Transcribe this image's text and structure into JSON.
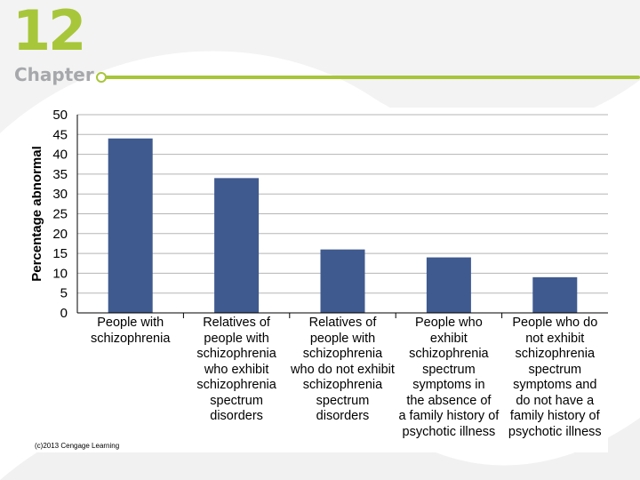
{
  "header": {
    "chapter_number": "12",
    "chapter_word": "Chapter",
    "accent_color": "#a8c63a"
  },
  "footer": {
    "copyright": "(c)2013 Cengage Learning"
  },
  "chart_data": {
    "type": "bar",
    "title": "",
    "xlabel": "",
    "ylabel": "Percentage abnormal",
    "ylim": [
      0,
      50
    ],
    "yticks": [
      0,
      5,
      10,
      15,
      20,
      25,
      30,
      35,
      40,
      45,
      50
    ],
    "grid": true,
    "bar_color": "#3f5a8f",
    "categories": [
      [
        "People with",
        "schizophrenia"
      ],
      [
        "Relatives of",
        "people with",
        "schizophrenia",
        "who exhibit",
        "schizophrenia",
        "spectrum",
        "disorders"
      ],
      [
        "Relatives of",
        "people with",
        "schizophrenia",
        "who do not exhibit",
        "schizophrenia",
        "spectrum",
        "disorders"
      ],
      [
        "People who",
        "exhibit",
        "schizophrenia",
        "spectrum",
        "symptoms in",
        "the absence of",
        "a family history of",
        "psychotic illness"
      ],
      [
        "People who do",
        "not exhibit",
        "schizophrenia",
        "spectrum",
        "symptoms and",
        "do not have a",
        "family history of",
        "psychotic illness"
      ]
    ],
    "values": [
      44,
      34,
      16,
      14,
      9
    ]
  }
}
